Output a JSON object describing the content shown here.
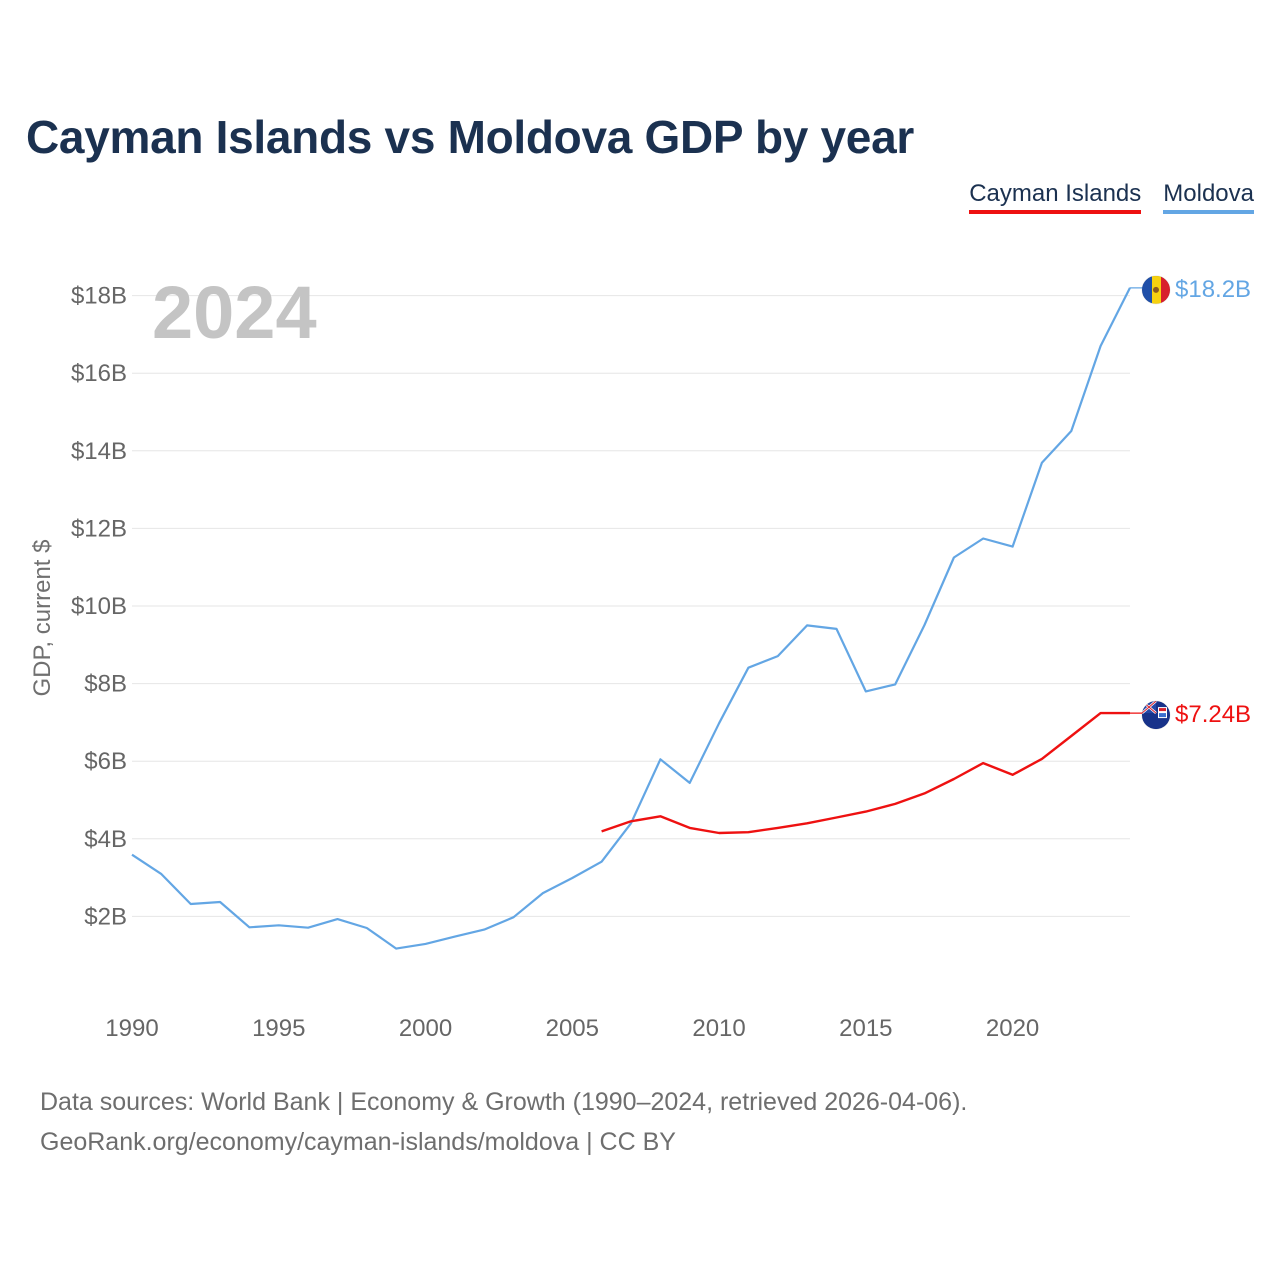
{
  "title": "Cayman Islands vs Moldova GDP by year",
  "legend": {
    "items": [
      {
        "label": "Cayman Islands",
        "color": "#ee1111"
      },
      {
        "label": "Moldova",
        "color": "#63a6e4"
      }
    ]
  },
  "footer": {
    "line1": "Data sources: World Bank | Economy & Growth (1990–2024, retrieved 2026-04-06).",
    "line2": "GeoRank.org/economy/cayman-islands/moldova | CC BY"
  },
  "icons": {
    "moldova_flag": "moldova-flag-icon",
    "cayman_flag": "cayman-islands-flag-icon"
  },
  "chart_data": {
    "type": "line",
    "title": "Cayman Islands vs Moldova GDP by year",
    "ylabel": "GDP, current $",
    "xlabel": "",
    "year_watermark": "2024",
    "xlim": [
      1990,
      2024
    ],
    "ylim": [
      0,
      18.5
    ],
    "x_ticks": [
      1990,
      1995,
      2000,
      2005,
      2010,
      2015,
      2020
    ],
    "y_ticks": [
      {
        "value": 2,
        "label": "$2B"
      },
      {
        "value": 4,
        "label": "$4B"
      },
      {
        "value": 6,
        "label": "$6B"
      },
      {
        "value": 8,
        "label": "$8B"
      },
      {
        "value": 10,
        "label": "$10B"
      },
      {
        "value": 12,
        "label": "$12B"
      },
      {
        "value": 14,
        "label": "$14B"
      },
      {
        "value": 16,
        "label": "$16B"
      },
      {
        "value": 18,
        "label": "$18B"
      }
    ],
    "grid": true,
    "series": [
      {
        "name": "Moldova",
        "color": "#63a6e4",
        "end_label": "$18.2B",
        "x": [
          1990,
          1991,
          1992,
          1993,
          1994,
          1995,
          1996,
          1997,
          1998,
          1999,
          2000,
          2001,
          2002,
          2003,
          2004,
          2005,
          2006,
          2007,
          2008,
          2009,
          2010,
          2011,
          2012,
          2013,
          2014,
          2015,
          2016,
          2017,
          2018,
          2019,
          2020,
          2021,
          2022,
          2023,
          2024
        ],
        "values": [
          3.59,
          3.09,
          2.32,
          2.37,
          1.72,
          1.77,
          1.71,
          1.93,
          1.7,
          1.17,
          1.29,
          1.48,
          1.66,
          1.98,
          2.6,
          2.99,
          3.41,
          4.4,
          6.05,
          5.44,
          6.98,
          8.41,
          8.71,
          9.5,
          9.41,
          7.8,
          7.98,
          9.51,
          11.25,
          11.74,
          11.53,
          13.69,
          14.51,
          16.7,
          18.2
        ]
      },
      {
        "name": "Cayman Islands",
        "color": "#ee1111",
        "end_label": "$7.24B",
        "x": [
          2006,
          2007,
          2008,
          2009,
          2010,
          2011,
          2012,
          2013,
          2014,
          2015,
          2016,
          2017,
          2018,
          2019,
          2020,
          2021,
          2022,
          2023,
          2024
        ],
        "values": [
          4.19,
          4.45,
          4.58,
          4.28,
          4.15,
          4.17,
          4.28,
          4.4,
          4.55,
          4.7,
          4.9,
          5.17,
          5.54,
          5.95,
          5.65,
          6.06,
          6.65,
          7.24,
          7.24
        ]
      }
    ]
  }
}
